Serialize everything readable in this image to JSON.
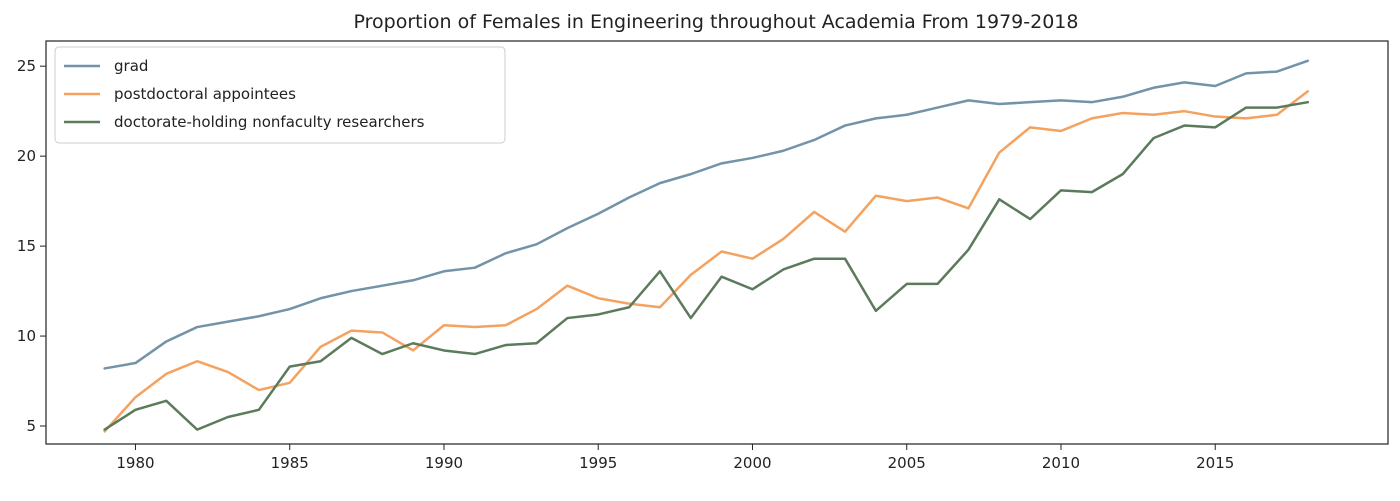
{
  "chart_data": {
    "type": "line",
    "title": "Proportion of Females in Engineering throughout Academia From 1979-2018",
    "xlabel": "",
    "ylabel": "",
    "xlim": [
      1977.1,
      2020.6
    ],
    "ylim": [
      4.0,
      26.4
    ],
    "xticks": [
      1980,
      1985,
      1990,
      1995,
      2000,
      2005,
      2010,
      2015
    ],
    "yticks": [
      5,
      10,
      15,
      20,
      25
    ],
    "grid": false,
    "legend_position": "top-left",
    "x": [
      1979,
      1980,
      1981,
      1982,
      1983,
      1984,
      1985,
      1986,
      1987,
      1988,
      1989,
      1990,
      1991,
      1992,
      1993,
      1994,
      1995,
      1996,
      1997,
      1998,
      1999,
      2000,
      2001,
      2002,
      2003,
      2004,
      2005,
      2006,
      2007,
      2008,
      2009,
      2010,
      2011,
      2012,
      2013,
      2014,
      2015,
      2016,
      2017,
      2018
    ],
    "series": [
      {
        "name": "grad",
        "color": "#7293a8",
        "values": [
          8.2,
          8.5,
          9.7,
          10.5,
          10.8,
          11.1,
          11.5,
          12.1,
          12.5,
          12.8,
          13.1,
          13.6,
          13.8,
          14.6,
          15.1,
          16.0,
          16.8,
          17.7,
          18.5,
          19.0,
          19.6,
          19.9,
          20.3,
          20.9,
          21.7,
          22.1,
          22.3,
          22.7,
          23.1,
          22.9,
          23.0,
          23.1,
          23.0,
          23.3,
          23.8,
          24.1,
          23.9,
          24.6,
          24.7,
          25.3
        ]
      },
      {
        "name": "postdoctoral appointees",
        "color": "#f4a260",
        "values": [
          4.7,
          6.6,
          7.9,
          8.6,
          8.0,
          7.0,
          7.4,
          9.4,
          10.3,
          10.2,
          9.2,
          10.6,
          10.5,
          10.6,
          11.5,
          12.8,
          12.1,
          11.8,
          11.6,
          13.4,
          14.7,
          14.3,
          15.4,
          16.9,
          15.8,
          17.8,
          17.5,
          17.7,
          17.1,
          20.2,
          21.6,
          21.4,
          22.1,
          22.4,
          22.3,
          22.5,
          22.2,
          22.1,
          22.3,
          23.6
        ]
      },
      {
        "name": "doctorate-holding nonfaculty researchers",
        "color": "#5c7a5c",
        "values": [
          4.8,
          5.9,
          6.4,
          4.8,
          5.5,
          5.9,
          8.3,
          8.6,
          9.9,
          9.0,
          9.6,
          9.2,
          9.0,
          9.5,
          9.6,
          11.0,
          11.2,
          11.6,
          13.6,
          11.0,
          13.3,
          12.6,
          13.7,
          14.3,
          14.3,
          11.4,
          12.9,
          12.9,
          14.8,
          17.6,
          16.5,
          18.1,
          18.0,
          19.0,
          21.0,
          21.7,
          21.6,
          22.7,
          22.7,
          23.0
        ]
      }
    ]
  }
}
